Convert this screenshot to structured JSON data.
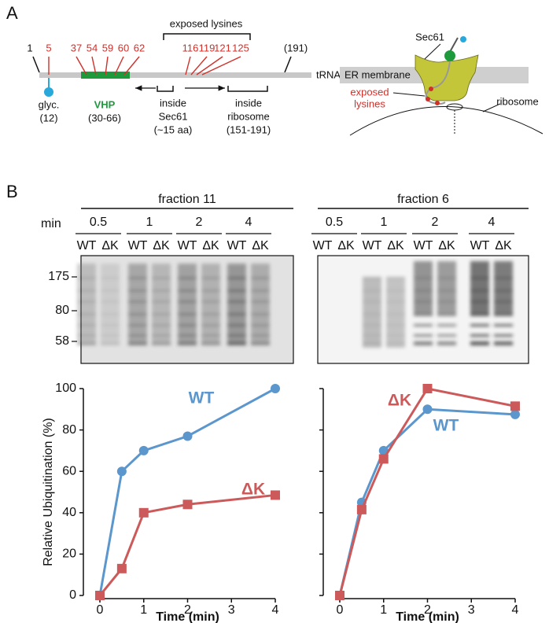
{
  "panel_a": {
    "label": "A",
    "schematic": {
      "start": "1",
      "end": "(191)",
      "sites": [
        "5",
        "37",
        "54",
        "59",
        "60",
        "62",
        "116",
        "119",
        "121",
        "125"
      ],
      "exposed_title": "exposed lysines",
      "trna": "tRNA",
      "glyc": [
        "glyc.",
        "(12)"
      ],
      "vhp": [
        "VHP",
        "(30-66)"
      ],
      "sec61": [
        "inside",
        "Sec61",
        "(~15 aa)"
      ],
      "ribosome": [
        "inside",
        "ribosome",
        "(151-191)"
      ]
    },
    "topology": {
      "sec61": "Sec61",
      "membrane": "ER membrane",
      "lysines": [
        "exposed",
        "lysines"
      ],
      "ribosome": "ribosome"
    }
  },
  "panel_b": {
    "label": "B",
    "min_label": "min",
    "gels": [
      {
        "fraction": "fraction 11",
        "times": [
          0.5,
          1,
          2,
          4
        ],
        "lanes": [
          "WT",
          "ΔK"
        ],
        "markers": [
          175,
          80,
          58
        ]
      },
      {
        "fraction": "fraction 6",
        "times": [
          0.5,
          1,
          2,
          4
        ],
        "lanes": [
          "WT",
          "ΔK"
        ]
      }
    ]
  },
  "chart_data": [
    {
      "type": "line",
      "y_label": "Relative Ubiquitination (%)",
      "x_label": "Time (min)",
      "x": [
        0,
        0.5,
        1,
        2,
        4
      ],
      "xlim": [
        0,
        4
      ],
      "xticks": [
        0,
        1,
        2,
        3,
        4
      ],
      "ylim": [
        0,
        100
      ],
      "yticks": [
        0,
        20,
        40,
        60,
        80,
        100
      ],
      "series": [
        {
          "name": "WT",
          "color": "#5b96cd",
          "marker": "circle",
          "values": [
            0,
            60,
            70,
            77,
            100
          ]
        },
        {
          "name": "ΔK",
          "color": "#cc5a5a",
          "marker": "square",
          "values": [
            0,
            13,
            40,
            44,
            48.5
          ]
        }
      ]
    },
    {
      "type": "line",
      "x_label": "Time (min)",
      "x": [
        0,
        0.5,
        1,
        2,
        4
      ],
      "xlim": [
        0,
        4
      ],
      "xticks": [
        0,
        1,
        2,
        3,
        4
      ],
      "ylim": [
        0,
        100
      ],
      "yticks": [
        0,
        20,
        40,
        60,
        80,
        100
      ],
      "series": [
        {
          "name": "WT",
          "color": "#5b96cd",
          "marker": "circle",
          "values": [
            0,
            45,
            70,
            90,
            87.5
          ]
        },
        {
          "name": "ΔK",
          "color": "#cc5a5a",
          "marker": "square",
          "values": [
            0,
            41.5,
            66,
            100,
            91.5
          ]
        }
      ]
    }
  ]
}
